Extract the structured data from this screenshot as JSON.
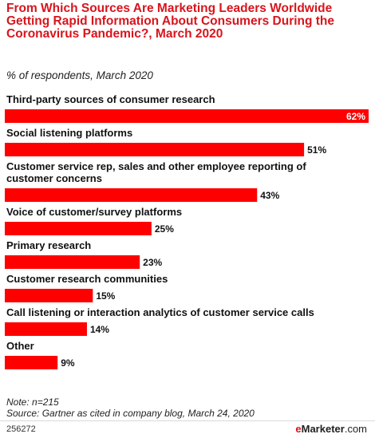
{
  "title": "From Which Sources Are Marketing Leaders Worldwide Getting Rapid Information About Consumers During the Coronavirus Pandemic?, March 2020",
  "subtitle": "% of respondents, March 2020",
  "note": "Note: n=215",
  "source": "Source: Gartner as cited in company blog, March 24, 2020",
  "chart_id": "256272",
  "brand": {
    "prefix": "e",
    "name": "Marketer",
    "suffix": ".com"
  },
  "colors": {
    "bar": "#ff0000",
    "title": "#d9141c"
  },
  "chart_data": {
    "type": "bar",
    "orientation": "horizontal",
    "categories": [
      [
        "Third-party sources of consumer research"
      ],
      [
        "Social listening platforms"
      ],
      [
        "Customer service rep, sales and other employee reporting of",
        "customer concerns"
      ],
      [
        "Voice of customer/survey platforms"
      ],
      [
        "Primary research"
      ],
      [
        "Customer research communities"
      ],
      [
        "Call listening or interaction analytics of customer service calls"
      ],
      [
        "Other"
      ]
    ],
    "values": [
      62,
      51,
      43,
      25,
      23,
      15,
      14,
      9
    ],
    "value_labels": [
      "62%",
      "51%",
      "43%",
      "25%",
      "23%",
      "15%",
      "14%",
      "9%"
    ],
    "xlim": [
      0,
      62
    ],
    "grid": false,
    "legend": "none"
  }
}
